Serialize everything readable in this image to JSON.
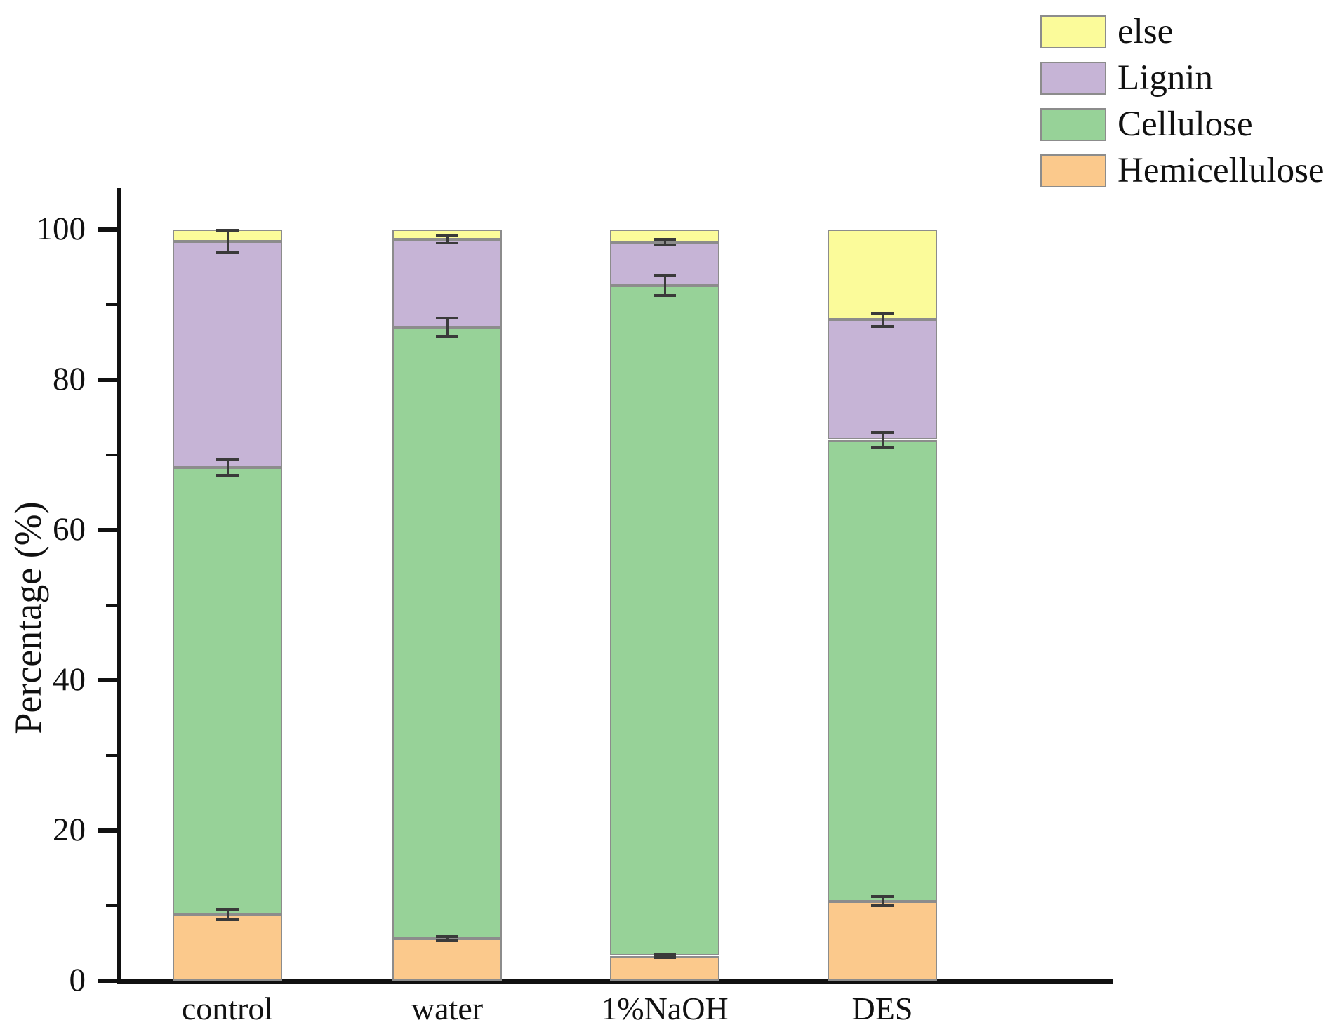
{
  "chart_data": {
    "type": "bar",
    "stacked": true,
    "title": "",
    "xlabel": "",
    "ylabel": "Percentage (%)",
    "ylim": [
      0,
      100
    ],
    "yticks": [
      0,
      20,
      40,
      60,
      80,
      100
    ],
    "yticks_minor": [
      10,
      30,
      50,
      70,
      90
    ],
    "grid": false,
    "legend_position": "top-right",
    "legend_order": [
      "else",
      "Lignin",
      "Cellulose",
      "Hemicellulose"
    ],
    "categories": [
      "control",
      "water",
      "1%NaOH",
      "DES"
    ],
    "series": [
      {
        "name": "Hemicellulose",
        "color": "#fbc98c",
        "values": [
          8.8,
          5.6,
          3.3,
          10.6
        ],
        "errors": [
          0.7,
          0.3,
          0.2,
          0.6
        ]
      },
      {
        "name": "Cellulose",
        "color": "#97d298",
        "values": [
          59.5,
          81.4,
          89.2,
          61.4
        ],
        "errors": [
          1.0,
          1.2,
          1.3,
          1.0
        ]
      },
      {
        "name": "Lignin",
        "color": "#c6b4d6",
        "values": [
          30.1,
          11.7,
          5.8,
          16.0
        ],
        "errors": [
          1.5,
          0.5,
          0.4,
          0.9
        ]
      },
      {
        "name": "else",
        "color": "#fbfb9a",
        "values": [
          1.6,
          1.3,
          1.7,
          12.0
        ],
        "errors": [
          null,
          null,
          null,
          null
        ]
      }
    ],
    "error_bars_note": "error bars drawn at cumulative tops of Hemicellulose, Cellulose and Lignin segments"
  },
  "colors": {
    "bar_edge": "#8c8c8c",
    "axis": "#111111",
    "error_bar": "#3a3a3a",
    "background": "#ffffff"
  }
}
